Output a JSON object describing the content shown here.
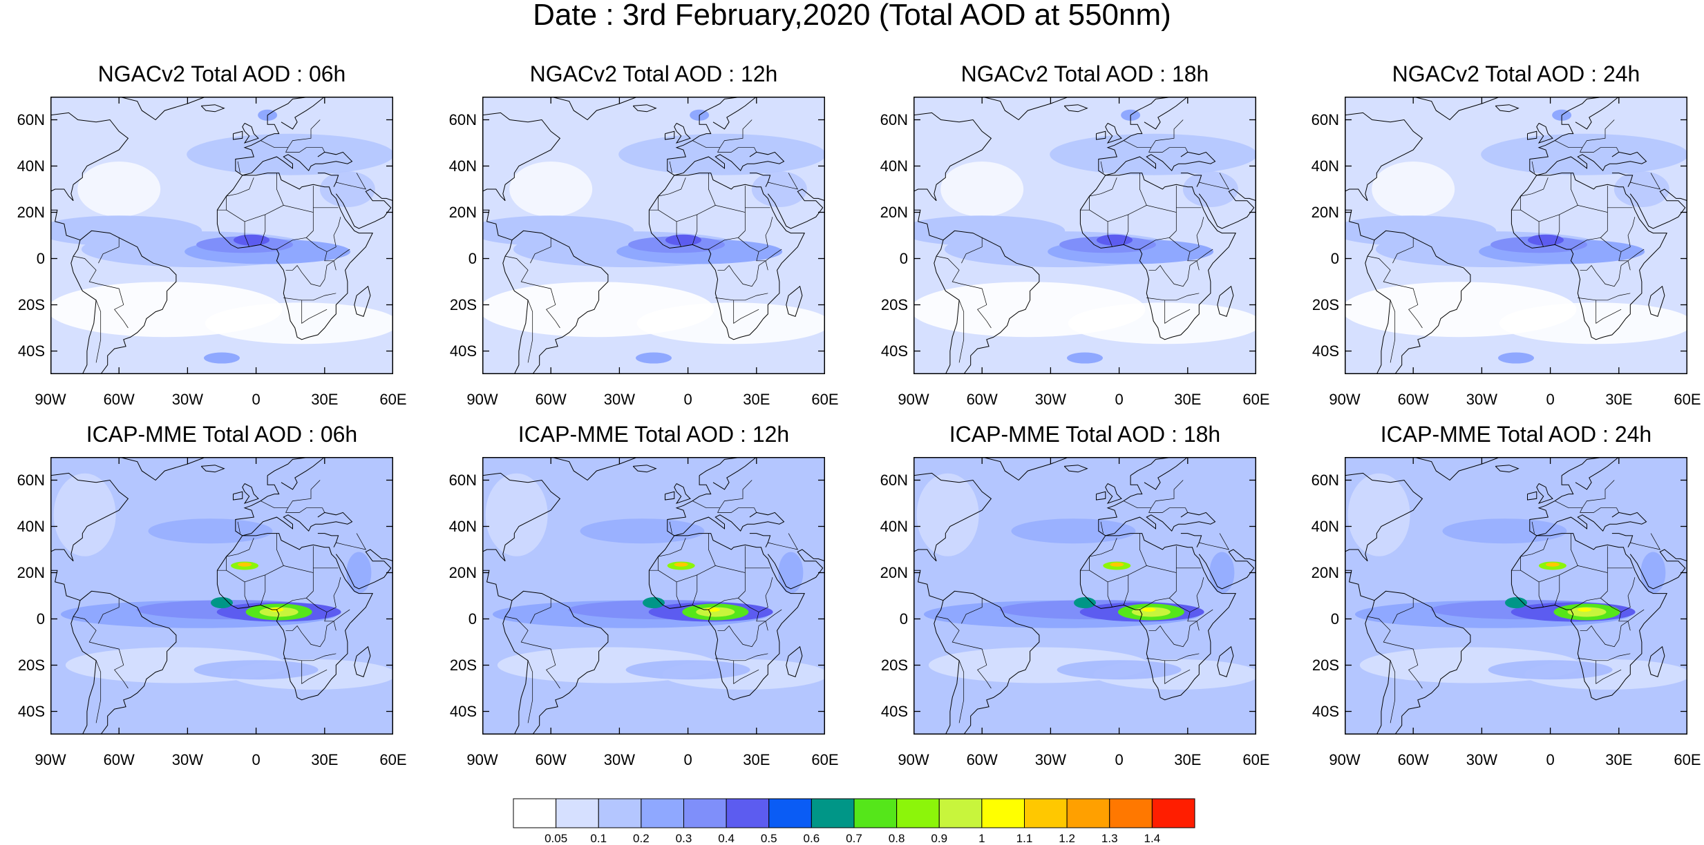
{
  "title": "Date : 3rd February,2020 (Total AOD at 550nm)",
  "panels": [
    {
      "title": "NGACv2 Total AOD : 06h"
    },
    {
      "title": "NGACv2 Total AOD : 12h"
    },
    {
      "title": "NGACv2 Total AOD : 18h"
    },
    {
      "title": "NGACv2 Total AOD : 24h"
    },
    {
      "title": "ICAP-MME Total AOD : 06h"
    },
    {
      "title": "ICAP-MME Total AOD : 12h"
    },
    {
      "title": "ICAP-MME Total AOD : 18h"
    },
    {
      "title": "ICAP-MME Total AOD : 24h"
    }
  ],
  "axes": {
    "lat_labels": [
      "60N",
      "40N",
      "20N",
      "0",
      "20S",
      "40S"
    ],
    "lon_labels": [
      "90W",
      "60W",
      "30W",
      "0",
      "30E",
      "60E"
    ]
  },
  "colorbar": {
    "colors": [
      "#ffffff",
      "#d6e0ff",
      "#b4c6ff",
      "#8fa8ff",
      "#7f8ffa",
      "#5c5cf0",
      "#0a5cf5",
      "#009687",
      "#55e61a",
      "#8cf50a",
      "#c8f53c",
      "#ffff00",
      "#ffc800",
      "#ffa000",
      "#ff7800",
      "#ff1e00"
    ],
    "labels": [
      "0.05",
      "0.1",
      "0.2",
      "0.3",
      "0.4",
      "0.5",
      "0.6",
      "0.7",
      "0.8",
      "0.9",
      "1",
      "1.1",
      "1.2",
      "1.3",
      "1.4"
    ]
  }
}
